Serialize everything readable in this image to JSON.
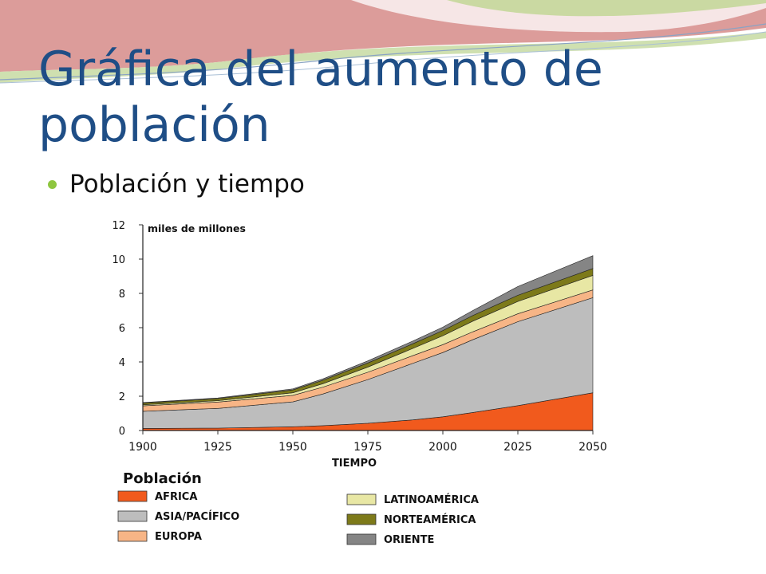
{
  "slide": {
    "title": "Gráfica del aumento de población",
    "bullet": "Población y tiempo"
  },
  "colors": {
    "title": "#1f4e86",
    "bullet": "#8ec63f",
    "africa": "#f15a1d",
    "asia": "#bdbdbd",
    "europa": "#f7b586",
    "latinoamerica": "#e8e7a4",
    "norteamerica": "#7d7a1a",
    "oriente": "#858585"
  },
  "chart_data": {
    "type": "area",
    "stacked": true,
    "ylabel": "miles de millones",
    "xlabel": "TIEMPO",
    "ylim": [
      0,
      12
    ],
    "yticks": [
      "0",
      "2",
      "4",
      "6",
      "8",
      "10",
      "12"
    ],
    "xticks": [
      "1900",
      "1925",
      "1950",
      "1975",
      "2000",
      "2025",
      "2050"
    ],
    "x": [
      1900,
      1925,
      1950,
      1960,
      1975,
      1990,
      2000,
      2010,
      2025,
      2050
    ],
    "legend_title": "Población",
    "series": [
      {
        "name": "AFRICA",
        "values": [
          0.12,
          0.14,
          0.22,
          0.28,
          0.42,
          0.62,
          0.8,
          1.05,
          1.45,
          2.2
        ]
      },
      {
        "name": "ASIA/PACÍFICO",
        "values": [
          1.0,
          1.15,
          1.45,
          1.85,
          2.55,
          3.3,
          3.75,
          4.25,
          4.9,
          5.55
        ]
      },
      {
        "name": "EUROPA",
        "values": [
          0.32,
          0.37,
          0.38,
          0.4,
          0.43,
          0.45,
          0.46,
          0.46,
          0.46,
          0.45
        ]
      },
      {
        "name": "LATINOAMÉRICA",
        "values": [
          0.06,
          0.08,
          0.15,
          0.2,
          0.3,
          0.42,
          0.52,
          0.62,
          0.72,
          0.85
        ]
      },
      {
        "name": "NORTEAMÉRICA",
        "values": [
          0.1,
          0.12,
          0.17,
          0.2,
          0.24,
          0.27,
          0.3,
          0.33,
          0.36,
          0.4
        ]
      },
      {
        "name": "ORIENTE",
        "values": [
          0.03,
          0.04,
          0.06,
          0.08,
          0.12,
          0.16,
          0.2,
          0.29,
          0.51,
          0.75
        ]
      }
    ]
  }
}
